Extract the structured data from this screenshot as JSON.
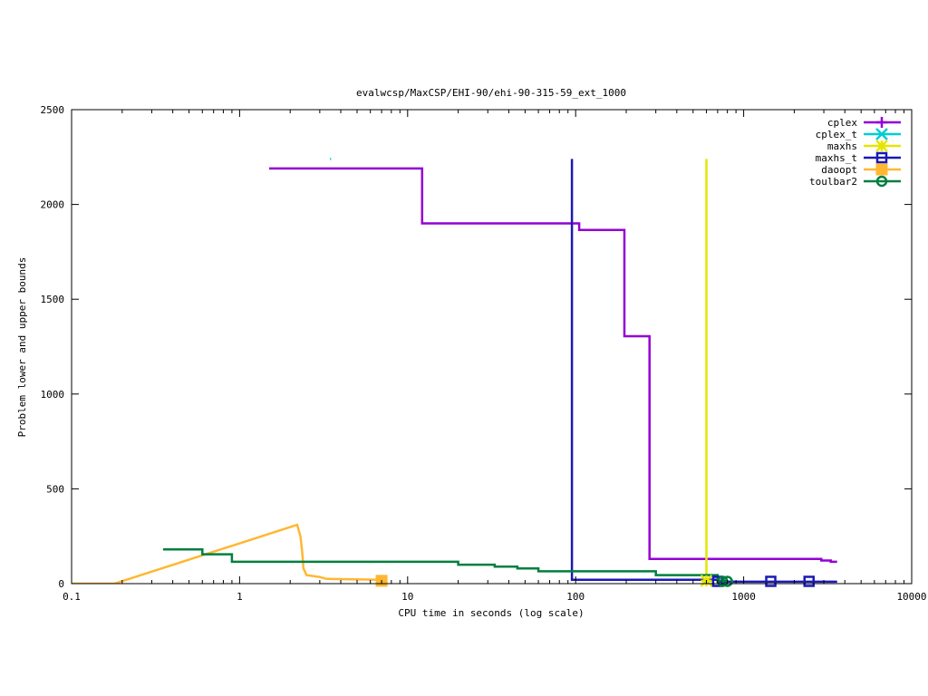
{
  "chart_data": {
    "type": "line",
    "title": "evalwcsp/MaxCSP/EHI-90/ehi-90-315-59_ext_1000",
    "xlabel": "CPU time in seconds (log scale)",
    "ylabel": "Problem lower and upper bounds",
    "xscale": "log",
    "xlim": [
      0.1,
      10000
    ],
    "ylim": [
      0,
      2500
    ],
    "x_ticks": [
      0.1,
      1,
      10,
      100,
      1000,
      10000
    ],
    "x_tick_labels": [
      "0.1",
      "1",
      "10",
      "100",
      "1000",
      "10000"
    ],
    "y_ticks": [
      0,
      500,
      1000,
      1500,
      2000,
      2500
    ],
    "y_tick_labels": [
      "0",
      "500",
      "1000",
      "1500",
      "2000",
      "2500"
    ],
    "grid": false,
    "legend_position": "top-right",
    "series": [
      {
        "name": "cplex",
        "color": "#9400d3",
        "marker": "plus",
        "points": [
          [
            1.5,
            2190
          ],
          [
            12.2,
            2190
          ],
          [
            12.2,
            1900
          ],
          [
            105,
            1900
          ],
          [
            105,
            1865
          ],
          [
            195,
            1865
          ],
          [
            195,
            1305
          ],
          [
            275,
            1305
          ],
          [
            275,
            130
          ],
          [
            2900,
            130
          ],
          [
            2900,
            122
          ],
          [
            3300,
            122
          ],
          [
            3300,
            115
          ],
          [
            3600,
            115
          ]
        ],
        "marker_points": []
      },
      {
        "name": "cplex_t",
        "color": "#00ced1",
        "marker": "cross",
        "points": [
          [
            3.45,
            2240
          ],
          [
            3.5,
            2240
          ]
        ],
        "marker_points": []
      },
      {
        "name": "maxhs",
        "color": "#e5e500",
        "marker": "star",
        "points": [
          [
            600,
            2240
          ],
          [
            600,
            0
          ]
        ],
        "marker_points": [
          [
            600,
            15
          ]
        ]
      },
      {
        "name": "maxhs_t",
        "color": "#1a1ab3",
        "marker": "square",
        "points": [
          [
            95,
            2240
          ],
          [
            95,
            20
          ],
          [
            700,
            20
          ],
          [
            700,
            10
          ],
          [
            3600,
            10
          ]
        ],
        "marker_points": [
          [
            700,
            12
          ],
          [
            1450,
            12
          ],
          [
            2450,
            12
          ]
        ]
      },
      {
        "name": "daoopt",
        "color": "#ffb732",
        "marker": "filled-square",
        "points": [
          [
            0.1,
            0
          ],
          [
            0.18,
            0
          ],
          [
            2.2,
            310
          ],
          [
            2.3,
            250
          ],
          [
            2.35,
            180
          ],
          [
            2.4,
            80
          ],
          [
            2.5,
            45
          ],
          [
            3.0,
            35
          ],
          [
            3.3,
            25
          ],
          [
            7.0,
            20
          ]
        ],
        "marker_points": [
          [
            7.0,
            15
          ]
        ]
      },
      {
        "name": "toulbar2",
        "color": "#007f3f",
        "marker": "circle",
        "points": [
          [
            0.35,
            180
          ],
          [
            0.6,
            180
          ],
          [
            0.6,
            155
          ],
          [
            0.9,
            155
          ],
          [
            0.9,
            115
          ],
          [
            20,
            115
          ],
          [
            20,
            100
          ],
          [
            33,
            100
          ],
          [
            33,
            90
          ],
          [
            45,
            90
          ],
          [
            45,
            80
          ],
          [
            60,
            80
          ],
          [
            60,
            65
          ],
          [
            300,
            65
          ],
          [
            300,
            45
          ],
          [
            700,
            45
          ],
          [
            700,
            15
          ],
          [
            800,
            15
          ]
        ],
        "marker_points": [
          [
            750,
            12
          ],
          [
            800,
            12
          ]
        ]
      }
    ]
  }
}
